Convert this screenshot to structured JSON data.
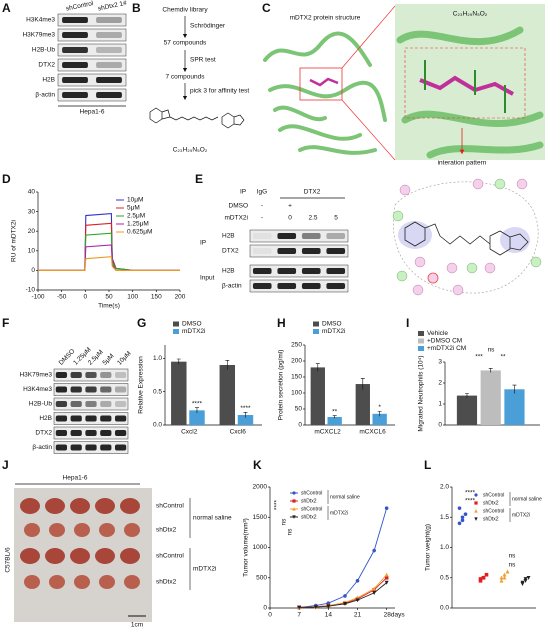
{
  "panels": {
    "A": {
      "label": "A",
      "lanes": [
        "shControl",
        "shDtx2 1#"
      ],
      "rows": [
        "H3K4me3",
        "H3K79me3",
        "H2B-Ub",
        "DTX2",
        "H2B",
        "β-actin"
      ],
      "cell_line": "Hepa1-6"
    },
    "B": {
      "label": "B",
      "steps": [
        "Chemdiv library",
        "57 compounds",
        "7 compounds"
      ],
      "methods": [
        "Schrödinger",
        "SPR test",
        "pick 3 for affinity test"
      ],
      "formula": "C₂₃H₂₉N₅O₂"
    },
    "C": {
      "label": "C",
      "title": "mDTX2 protein structure",
      "formula": "C₂₃H₂₉N₅O₂",
      "caption": "interation pattern"
    },
    "E": {
      "label": "E",
      "ip": "IP",
      "control": "IgG",
      "target": "DTX2",
      "treatments": [
        "DMSO",
        "mDTX2i"
      ],
      "dmso": [
        "-",
        "+"
      ],
      "mdtx2i": [
        "-",
        "0",
        "2.5",
        "5"
      ],
      "groups": [
        "IP",
        "Input"
      ],
      "rows": [
        "H2B",
        "DTX2",
        "H2B",
        "β-actin"
      ]
    },
    "F": {
      "label": "F",
      "lanes": [
        "DMSO",
        "1.25μM",
        "2.5μM",
        "5μM",
        "10μM"
      ],
      "rows": [
        "H3K79me3",
        "H3K4me3",
        "H2B-Ub",
        "H2B",
        "DTX2",
        "β-actin"
      ]
    },
    "J": {
      "label": "J",
      "cell_line": "Hepa1-6",
      "strain": "C57BL/6",
      "groups": [
        "shControl",
        "shDtx2",
        "shControl",
        "shDtx2"
      ],
      "treatments": [
        "normal saline",
        "mDTX2i"
      ],
      "scale_bar": "1cm"
    }
  },
  "chart_data": [
    {
      "label": "D",
      "type": "line",
      "ylabel": "RU of mDTX2i",
      "xlabel": "Time(s)",
      "x": [
        -100,
        -1,
        1,
        55,
        57,
        65,
        100,
        200
      ],
      "xlim": [
        -100,
        200
      ],
      "xticks": [
        -100,
        -50,
        0,
        50,
        100,
        150,
        200
      ],
      "ylim": [
        -10,
        40
      ],
      "yticks": [
        -10,
        0,
        10,
        20,
        30,
        40
      ],
      "legend": "upper right",
      "series": [
        {
          "name": "10μM",
          "color": "#3333cc",
          "values": [
            0,
            0,
            28,
            29,
            6,
            1,
            0,
            0
          ]
        },
        {
          "name": "5μM",
          "color": "#dd2222",
          "values": [
            0,
            0,
            23,
            24,
            5,
            1,
            0,
            0
          ]
        },
        {
          "name": "2.5μM",
          "color": "#22aa22",
          "values": [
            0,
            0,
            18,
            19,
            4,
            1,
            0,
            0
          ]
        },
        {
          "name": "1.25μM",
          "color": "#aa22aa",
          "values": [
            0,
            0,
            12,
            13,
            3,
            0,
            0,
            0
          ]
        },
        {
          "name": "0.625μM",
          "color": "#ee9922",
          "values": [
            0,
            0,
            6,
            7,
            2,
            0,
            0,
            0
          ]
        }
      ]
    },
    {
      "label": "G",
      "type": "bar",
      "ylabel": "Relative Expression",
      "categories": [
        "Cxcl2",
        "Cxcl6"
      ],
      "ylim": [
        0,
        1.2
      ],
      "yticks": [
        {
          "value": 0,
          "label": "0.0"
        },
        0.5,
        {
          "value": 1,
          "label": "1.0"
        }
      ],
      "legend": "top",
      "series": [
        {
          "name": "DMSO",
          "color": "#4d4d4d",
          "values": [
            0.95,
            0.9
          ],
          "errors": [
            0.04,
            0.07
          ]
        },
        {
          "name": "mDTX2i",
          "color": "#4a9fd8",
          "values": [
            0.22,
            0.15
          ],
          "errors": [
            0.04,
            0.04
          ],
          "annotations": [
            "****",
            "****"
          ]
        }
      ]
    },
    {
      "label": "H",
      "type": "bar",
      "ylabel": "Protein secretion (pg/ml)",
      "categories": [
        "mCXCL2",
        "mCXCL6"
      ],
      "ylim": [
        0,
        250
      ],
      "yticks": [
        0,
        50,
        100,
        150,
        200,
        250
      ],
      "legend": "top",
      "series": [
        {
          "name": "DMSO",
          "color": "#4d4d4d",
          "values": [
            180,
            128
          ],
          "errors": [
            12,
            18
          ]
        },
        {
          "name": "mDTX2i",
          "color": "#4a9fd8",
          "values": [
            25,
            35
          ],
          "errors": [
            4,
            8
          ],
          "annotations": [
            "**",
            "*"
          ]
        }
      ]
    },
    {
      "label": "I",
      "type": "bar",
      "ylabel": "Migrated Neutrophils (10⁴)",
      "categories": [
        null
      ],
      "ylim": [
        0,
        3
      ],
      "yticks": [
        0,
        1,
        2,
        3
      ],
      "legend": "top",
      "annotations": [
        "ns",
        "***",
        "**"
      ],
      "series": [
        {
          "name": "Vehicle",
          "color": "#4d4d4d",
          "values": [
            1.4
          ],
          "errors": [
            0.1
          ]
        },
        {
          "name": "+DMSO CM",
          "color": "#bdbdbd",
          "values": [
            2.6
          ],
          "errors": [
            0.1
          ]
        },
        {
          "name": "+mDTX2i CM",
          "color": "#4a9fd8",
          "values": [
            1.7
          ],
          "errors": [
            0.2
          ]
        }
      ]
    },
    {
      "label": "K",
      "type": "line",
      "markers": true,
      "ylabel": "Tumor volume(mm³)",
      "x": [
        7,
        11,
        14,
        18,
        21,
        25,
        28
      ],
      "xlim": [
        0,
        30
      ],
      "xticks": [
        0,
        7,
        14,
        21,
        {
          "value": 28,
          "label": "28days"
        }
      ],
      "ylim": [
        0,
        2000
      ],
      "yticks": [
        0,
        500,
        1000,
        1500,
        2000
      ],
      "legend": "upper left",
      "legend_groups": [
        "normal saline",
        "mDTX2i"
      ],
      "annotations": [
        "****",
        "ns",
        "ns"
      ],
      "series": [
        {
          "name": "shControl",
          "color": "#3355cc",
          "marker": "circle",
          "values": [
            10,
            40,
            80,
            200,
            450,
            950,
            1650
          ]
        },
        {
          "name": "shDtx2",
          "color": "#e02020",
          "marker": "square",
          "values": [
            10,
            20,
            40,
            80,
            150,
            300,
            500
          ]
        },
        {
          "name": "shControl",
          "color": "#f0a030",
          "marker": "triangle-up",
          "values": [
            10,
            20,
            40,
            90,
            170,
            320,
            550
          ]
        },
        {
          "name": "shDtx2",
          "color": "#222222",
          "marker": "triangle-down",
          "values": [
            10,
            15,
            30,
            70,
            130,
            250,
            420
          ]
        }
      ]
    },
    {
      "label": "L",
      "type": "strip",
      "ylabel": "Tumor weight(g)",
      "ylim": [
        0,
        2
      ],
      "yticks": [
        {
          "value": 0,
          "label": "0.0"
        },
        0.5,
        {
          "value": 1,
          "label": "1.0"
        },
        1.5,
        {
          "value": 2,
          "label": "2.0"
        }
      ],
      "legend": "upper right",
      "legend_groups": [
        "normal saline",
        "mDTX2i"
      ],
      "annotations": [
        "****",
        "****",
        "ns",
        "ns"
      ],
      "series": [
        {
          "name": "shControl",
          "color": "#3355cc",
          "marker": "circle",
          "values": [
            1.4,
            1.5,
            1.55,
            1.65,
            1.45
          ]
        },
        {
          "name": "shDtx2",
          "color": "#e02020",
          "marker": "square",
          "values": [
            0.45,
            0.5,
            0.55,
            0.48,
            0.5
          ]
        },
        {
          "name": "shControl",
          "color": "#f0a030",
          "marker": "triangle-up",
          "values": [
            0.5,
            0.55,
            0.6,
            0.45,
            0.5
          ]
        },
        {
          "name": "shDtx2",
          "color": "#222222",
          "marker": "triangle-down",
          "values": [
            0.4,
            0.45,
            0.5,
            0.42,
            0.48
          ]
        }
      ]
    }
  ]
}
